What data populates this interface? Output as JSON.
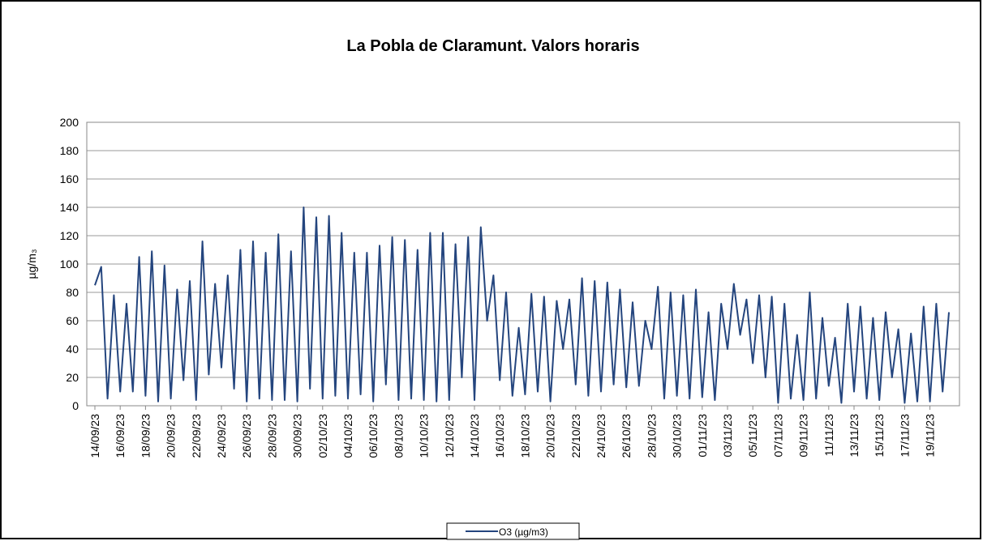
{
  "chart_data": {
    "type": "line",
    "title": "La Pobla de Claramunt. Valors horaris",
    "y_label": "µg/m₃",
    "categories": [
      "14/09/23",
      null,
      null,
      null,
      "16/09/23",
      null,
      null,
      null,
      "18/09/23",
      null,
      null,
      null,
      "20/09/23",
      null,
      null,
      null,
      "22/09/23",
      null,
      null,
      null,
      "24/09/23",
      null,
      null,
      null,
      "26/09/23",
      null,
      null,
      null,
      "28/09/23",
      null,
      null,
      null,
      "30/09/23",
      null,
      null,
      null,
      "02/10/23",
      null,
      null,
      null,
      "04/10/23",
      null,
      null,
      null,
      "06/10/23",
      null,
      null,
      null,
      "08/10/23",
      null,
      null,
      null,
      "10/10/23",
      null,
      null,
      null,
      "12/10/23",
      null,
      null,
      null,
      "14/10/23",
      null,
      null,
      null,
      "16/10/23",
      null,
      null,
      null,
      "18/10/23",
      null,
      null,
      null,
      "20/10/23",
      null,
      null,
      null,
      "22/10/23",
      null,
      null,
      null,
      "24/10/23",
      null,
      null,
      null,
      "26/10/23",
      null,
      null,
      null,
      "28/10/23",
      null,
      null,
      null,
      "30/10/23",
      null,
      null,
      null,
      "01/11/23",
      null,
      null,
      null,
      "03/11/23",
      null,
      null,
      null,
      "05/11/23",
      null,
      null,
      null,
      "07/11/23",
      null,
      null,
      null,
      "09/11/23",
      null,
      null,
      null,
      "11/11/23",
      null,
      null,
      null,
      "13/11/23",
      null,
      null,
      null,
      "15/11/23",
      null,
      null,
      null,
      "17/11/23",
      null,
      null,
      null,
      "19/11/23",
      null,
      null,
      null
    ],
    "series": [
      {
        "name": "O3 (µg/m3)",
        "color": "#24457e",
        "values": [
          85,
          98,
          5,
          78,
          10,
          72,
          10,
          105,
          7,
          109,
          3,
          99,
          5,
          82,
          18,
          88,
          4,
          116,
          22,
          86,
          27,
          92,
          12,
          110,
          3,
          116,
          5,
          108,
          4,
          121,
          4,
          109,
          3,
          140,
          12,
          133,
          5,
          134,
          7,
          122,
          5,
          108,
          8,
          108,
          3,
          113,
          15,
          119,
          4,
          117,
          5,
          110,
          4,
          122,
          3,
          122,
          4,
          114,
          20,
          119,
          4,
          126,
          60,
          92,
          18,
          80,
          7,
          55,
          8,
          79,
          10,
          77,
          3,
          74,
          40,
          75,
          15,
          90,
          7,
          88,
          10,
          87,
          15,
          82,
          13,
          73,
          14,
          60,
          40,
          84,
          5,
          80,
          7,
          78,
          5,
          82,
          6,
          66,
          4,
          72,
          40,
          86,
          50,
          75,
          30,
          78,
          20,
          77,
          2,
          72,
          5,
          50,
          4,
          80,
          5,
          62,
          14,
          48,
          2,
          72,
          10,
          70,
          5,
          62,
          4,
          66,
          20,
          54,
          2,
          51,
          3,
          70,
          3,
          72,
          10,
          66
        ]
      }
    ],
    "ylim": [
      0,
      200
    ],
    "yticks": [
      0,
      20,
      40,
      60,
      80,
      100,
      120,
      140,
      160,
      180,
      200
    ],
    "grid": true,
    "legend": "bottom"
  }
}
